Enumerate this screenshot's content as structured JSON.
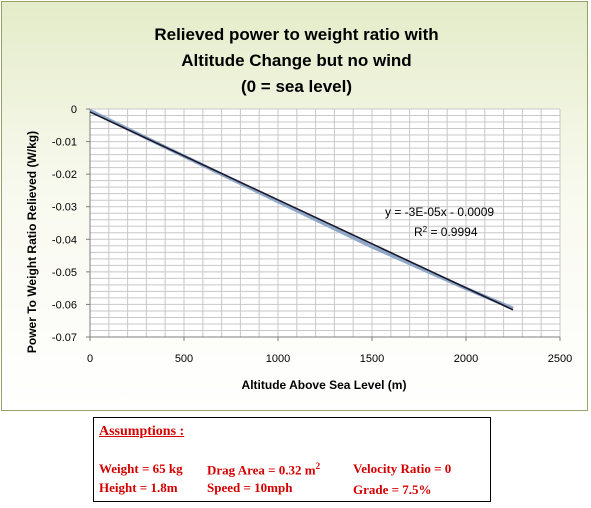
{
  "chart_data": {
    "type": "line",
    "title": "Relieved power to weight ratio with\nAltitude Change but no wind\n(0 = sea level)",
    "xlabel": "Altitude Above Sea Level (m)",
    "ylabel": "Power To Weight Ratio Relieved (W/kg)",
    "xlim": [
      0,
      2500
    ],
    "ylim": [
      -0.07,
      0
    ],
    "x_ticks": [
      "0",
      "500",
      "1000",
      "1500",
      "2000",
      "2500"
    ],
    "y_ticks": [
      "0",
      "-0.01",
      "-0.02",
      "-0.03",
      "-0.04",
      "-0.05",
      "-0.06",
      "-0.07"
    ],
    "grid": true,
    "series": [
      {
        "values": [
          [
            0,
            -0.0005
          ],
          [
            500,
            -0.0145
          ],
          [
            1000,
            -0.0284
          ],
          [
            1500,
            -0.0423
          ],
          [
            2000,
            -0.0551
          ],
          [
            2250,
            -0.0612
          ]
        ],
        "color": "#8fa8c8"
      }
    ],
    "trendline": {
      "slope": -2.7e-05,
      "intercept": -0.0009,
      "x_range": [
        0,
        2250
      ],
      "color": "#1a1a2e",
      "equation": "y = -3E-05x - 0.0009",
      "r2_label": "R",
      "r2_value": " = 0.9994"
    }
  },
  "assumptions": {
    "title": "Assumptions :",
    "weight": "Weight = 65 kg",
    "height": "Height = 1.8m",
    "drag_area": "Drag Area = 0.32 m",
    "drag_area_exp": "2",
    "speed": "Speed = 10mph",
    "velocity_ratio": "Velocity Ratio = 0",
    "grade": "Grade = 7.5%"
  },
  "colors": {
    "assumptions_text": "#d40000",
    "panel_top": "#e4ecc9"
  }
}
